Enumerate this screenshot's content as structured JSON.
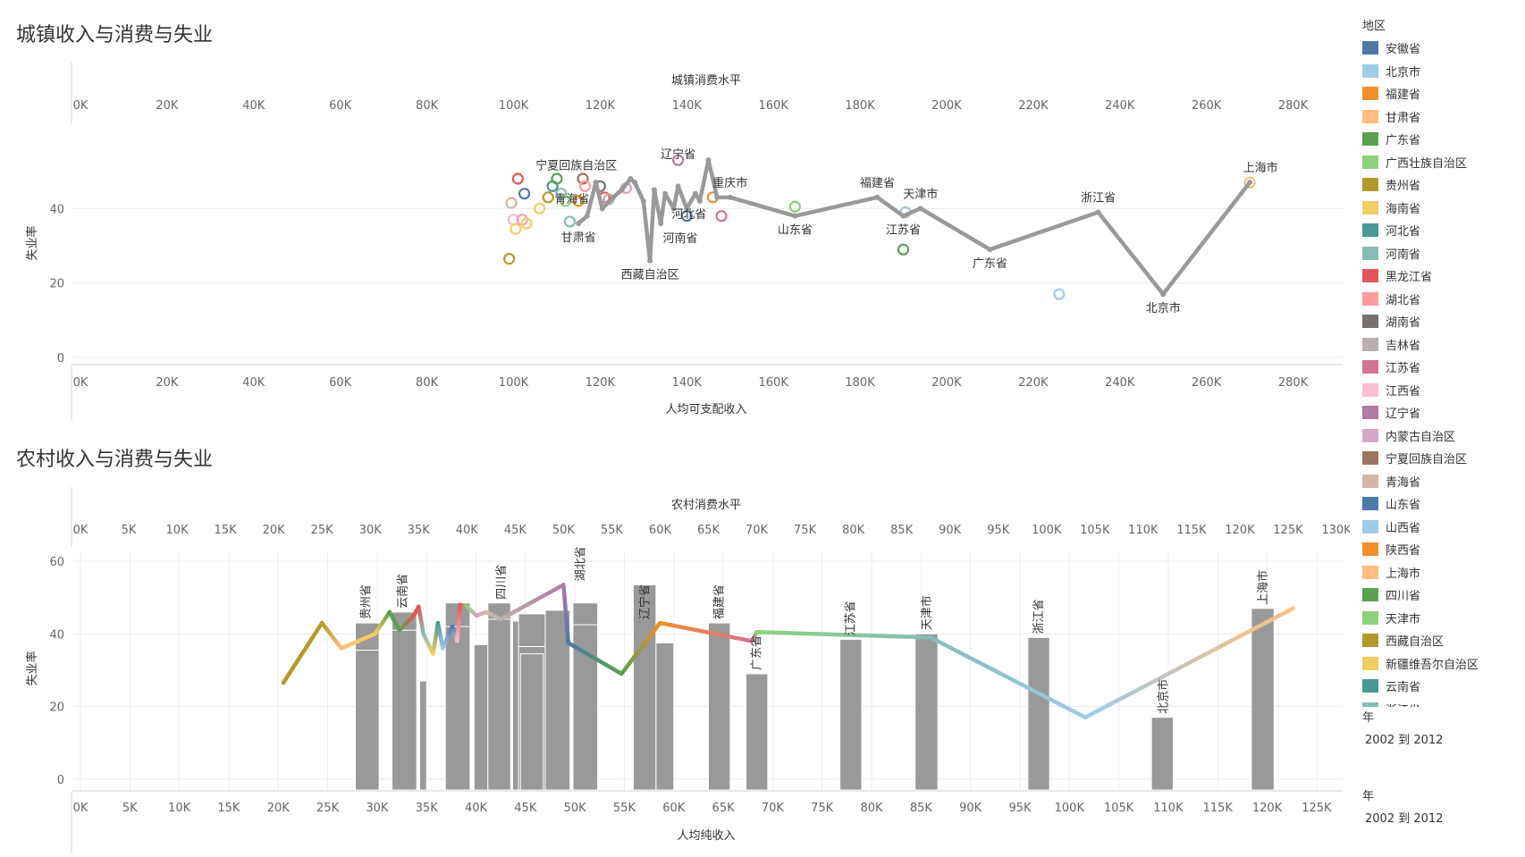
{
  "chart_data": [
    {
      "type": "scatter",
      "title": "城镇收入与消费与失业",
      "xlabel": "人均可支配收入",
      "x2label": "城镇消费水平",
      "ylabel": "失业率",
      "xlim": [
        0,
        290000
      ],
      "x2lim": [
        0,
        290000
      ],
      "ylim": [
        0,
        60
      ],
      "xticks": [
        0,
        20000,
        40000,
        60000,
        80000,
        100000,
        120000,
        140000,
        160000,
        180000,
        200000,
        220000,
        240000,
        260000,
        280000
      ],
      "xtick_labels": [
        "0K",
        "20K",
        "40K",
        "60K",
        "80K",
        "100K",
        "120K",
        "140K",
        "160K",
        "180K",
        "200K",
        "220K",
        "240K",
        "260K",
        "280K"
      ],
      "yticks": [
        0,
        20,
        40
      ],
      "ytick_labels": [
        "0",
        "20",
        "40"
      ],
      "line": {
        "color": "#999999",
        "points": [
          {
            "x": 115000,
            "y": 36,
            "label": "甘肃省"
          },
          {
            "x": 117000,
            "y": 38
          },
          {
            "x": 119000,
            "y": 47
          },
          {
            "x": 120500,
            "y": 40
          },
          {
            "x": 123000,
            "y": 43
          },
          {
            "x": 125000,
            "y": 45
          },
          {
            "x": 127000,
            "y": 48
          },
          {
            "x": 128000,
            "y": 47
          },
          {
            "x": 130000,
            "y": 42
          },
          {
            "x": 131500,
            "y": 26,
            "label": "西藏自治区"
          },
          {
            "x": 132500,
            "y": 45
          },
          {
            "x": 134000,
            "y": 36
          },
          {
            "x": 135000,
            "y": 44
          },
          {
            "x": 137000,
            "y": 40
          },
          {
            "x": 138000,
            "y": 46
          },
          {
            "x": 140000,
            "y": 40
          },
          {
            "x": 142000,
            "y": 44
          },
          {
            "x": 143000,
            "y": 42
          },
          {
            "x": 145000,
            "y": 53
          },
          {
            "x": 147000,
            "y": 43
          },
          {
            "x": 150000,
            "y": 43,
            "label": "重庆市"
          },
          {
            "x": 165000,
            "y": 38,
            "label": "山东省"
          },
          {
            "x": 184000,
            "y": 43,
            "label": "福建省"
          },
          {
            "x": 190000,
            "y": 38,
            "label": "江苏省"
          },
          {
            "x": 194000,
            "y": 40,
            "label": "天津市"
          },
          {
            "x": 210000,
            "y": 29,
            "label": "广东省"
          },
          {
            "x": 235000,
            "y": 39,
            "label": "浙江省"
          },
          {
            "x": 250000,
            "y": 17,
            "label": "北京市"
          },
          {
            "x": 270000,
            "y": 47,
            "label": "上海市"
          }
        ]
      },
      "points": [
        {
          "x": 99000,
          "y": 26.5,
          "color": "#B39B2A"
        },
        {
          "x": 99500,
          "y": 41.5,
          "color": "#D7B5A6"
        },
        {
          "x": 100000,
          "y": 37,
          "color": "#F4BBCF"
        },
        {
          "x": 100500,
          "y": 34.5,
          "color": "#F1CE63"
        },
        {
          "x": 101000,
          "y": 48,
          "color": "#E15759"
        },
        {
          "x": 102000,
          "y": 37,
          "color": "#F1A2BD"
        },
        {
          "x": 102500,
          "y": 44,
          "color": "#4E79A7"
        },
        {
          "x": 103000,
          "y": 36,
          "color": "#F1CE63"
        },
        {
          "x": 106000,
          "y": 40,
          "color": "#F1CE63"
        },
        {
          "x": 108000,
          "y": 43,
          "color": "#B39B2A"
        },
        {
          "x": 109000,
          "y": 46,
          "color": "#499894"
        },
        {
          "x": 110000,
          "y": 48,
          "color": "#59A14F"
        },
        {
          "x": 111000,
          "y": 44,
          "color": "#86BCB6"
        },
        {
          "x": 112000,
          "y": 42,
          "color": "#8CD17D"
        },
        {
          "x": 113000,
          "y": 36.5,
          "color": "#86BCB6"
        },
        {
          "x": 115000,
          "y": 42,
          "color": "#F28E2B"
        },
        {
          "x": 116000,
          "y": 48,
          "color": "#9C755F"
        },
        {
          "x": 116500,
          "y": 46,
          "color": "#FF9D9A"
        },
        {
          "x": 120000,
          "y": 46,
          "color": "#79706E"
        },
        {
          "x": 121000,
          "y": 43,
          "color": "#E15759"
        },
        {
          "x": 122000,
          "y": 42.5,
          "color": "#BAB0AC"
        },
        {
          "x": 126000,
          "y": 45.5,
          "color": "#D4A6C8"
        },
        {
          "x": 138000,
          "y": 53,
          "color": "#B07AA1"
        },
        {
          "x": 140000,
          "y": 38,
          "color": "#4E79A7"
        },
        {
          "x": 146000,
          "y": 43,
          "color": "#F28E2B"
        },
        {
          "x": 148000,
          "y": 38,
          "color": "#D37295"
        },
        {
          "x": 165000,
          "y": 40.5,
          "color": "#8CD17D"
        },
        {
          "x": 190000,
          "y": 29,
          "color": "#59A14F"
        },
        {
          "x": 190500,
          "y": 39,
          "color": "#9DC6DE"
        },
        {
          "x": 226000,
          "y": 17,
          "color": "#A0CBE8"
        },
        {
          "x": 270000,
          "y": 47,
          "color": "#FFBE7D"
        }
      ],
      "labels": [
        {
          "text": "宁夏回族自治区",
          "x": 114500,
          "y": 50.5
        },
        {
          "text": "辽宁省",
          "x": 138000,
          "y": 53.5
        },
        {
          "text": "青海省",
          "x": 113500,
          "y": 41.5
        },
        {
          "text": "河北省",
          "x": 140500,
          "y": 37.5
        },
        {
          "text": "河南省",
          "x": 138500,
          "y": 31
        }
      ]
    },
    {
      "type": "bar+line",
      "title": "农村收入与消费与失业",
      "xlabel": "人均纯收入",
      "x2label": "农村消费水平",
      "ylabel": "失业率",
      "xlim": [
        0,
        127000
      ],
      "x2lim": [
        0,
        130000
      ],
      "ylim": [
        -3,
        60
      ],
      "xticks": [
        0,
        5000,
        10000,
        15000,
        20000,
        25000,
        30000,
        35000,
        40000,
        45000,
        50000,
        55000,
        60000,
        65000,
        70000,
        75000,
        80000,
        85000,
        90000,
        95000,
        100000,
        105000,
        110000,
        115000,
        120000,
        125000
      ],
      "xtick_labels": [
        "0K",
        "5K",
        "10K",
        "15K",
        "20K",
        "25K",
        "30K",
        "35K",
        "40K",
        "45K",
        "50K",
        "55K",
        "60K",
        "65K",
        "70K",
        "75K",
        "80K",
        "85K",
        "90K",
        "95K",
        "100K",
        "105K",
        "110K",
        "115K",
        "120K",
        "125K"
      ],
      "x2ticks": [
        0,
        5000,
        10000,
        15000,
        20000,
        25000,
        30000,
        35000,
        40000,
        45000,
        50000,
        55000,
        60000,
        65000,
        70000,
        75000,
        80000,
        85000,
        90000,
        95000,
        100000,
        105000,
        110000,
        115000,
        120000,
        125000,
        130000
      ],
      "x2tick_labels": [
        "0K",
        "5K",
        "10K",
        "15K",
        "20K",
        "25K",
        "30K",
        "35K",
        "40K",
        "45K",
        "50K",
        "55K",
        "60K",
        "65K",
        "70K",
        "75K",
        "80K",
        "85K",
        "90K",
        "95K",
        "100K",
        "105K",
        "110K",
        "115K",
        "120K",
        "125K",
        "130K"
      ],
      "yticks": [
        0,
        20,
        40,
        60
      ],
      "ytick_labels": [
        "0",
        "20",
        "40",
        "60"
      ],
      "bars": [
        {
          "x0": 27800,
          "x1": 30200,
          "y": 43
        },
        {
          "x0": 27800,
          "x1": 30200,
          "y": 35.5
        },
        {
          "x0": 31500,
          "x1": 34000,
          "y": 46
        },
        {
          "x0": 31500,
          "x1": 34000,
          "y": 41
        },
        {
          "x0": 34300,
          "x1": 35000,
          "y": 27
        },
        {
          "x0": 36900,
          "x1": 39400,
          "y": 48.5
        },
        {
          "x0": 36900,
          "x1": 39400,
          "y": 42
        },
        {
          "x0": 39800,
          "x1": 41300,
          "y": 37
        },
        {
          "x0": 41200,
          "x1": 43500,
          "y": 48.5
        },
        {
          "x0": 41200,
          "x1": 43500,
          "y": 44
        },
        {
          "x0": 43700,
          "x1": 46200,
          "y": 43.5
        },
        {
          "x0": 44300,
          "x1": 47000,
          "y": 45.5
        },
        {
          "x0": 44300,
          "x1": 47000,
          "y": 36.5
        },
        {
          "x0": 44500,
          "x1": 46800,
          "y": 34.5
        },
        {
          "x0": 47000,
          "x1": 49500,
          "y": 46.5
        },
        {
          "x0": 49800,
          "x1": 52300,
          "y": 48.5
        },
        {
          "x0": 49800,
          "x1": 52300,
          "y": 42.5
        },
        {
          "x0": 55900,
          "x1": 58200,
          "y": 53.5
        },
        {
          "x0": 58200,
          "x1": 60000,
          "y": 37.5
        },
        {
          "x0": 63500,
          "x1": 65700,
          "y": 43
        },
        {
          "x0": 67300,
          "x1": 69500,
          "y": 29
        },
        {
          "x0": 76800,
          "x1": 79000,
          "y": 38.5
        },
        {
          "x0": 84400,
          "x1": 86700,
          "y": 40
        },
        {
          "x0": 95800,
          "x1": 98000,
          "y": 39
        },
        {
          "x0": 108300,
          "x1": 110500,
          "y": 17
        },
        {
          "x0": 118400,
          "x1": 120700,
          "y": 47
        }
      ],
      "bar_color": "#999999",
      "line": [
        {
          "x2": 21000,
          "y": 26.5,
          "color": "#B39B2A"
        },
        {
          "x2": 25000,
          "y": 43,
          "color": "#B39B2A"
        },
        {
          "x2": 27000,
          "y": 36,
          "color": "#FFBE7D"
        },
        {
          "x2": 30500,
          "y": 40,
          "color": "#F1CE63"
        },
        {
          "x2": 32000,
          "y": 46,
          "color": "#59A14F"
        },
        {
          "x2": 33000,
          "y": 41,
          "color": "#59A14F"
        },
        {
          "x2": 34500,
          "y": 45,
          "color": "#E15759"
        },
        {
          "x2": 35000,
          "y": 47.5,
          "color": "#E15759"
        },
        {
          "x2": 35500,
          "y": 40,
          "color": "#86BCB6"
        },
        {
          "x2": 36500,
          "y": 34.5,
          "color": "#F1CE63"
        },
        {
          "x2": 37000,
          "y": 43,
          "color": "#499894"
        },
        {
          "x2": 37500,
          "y": 36,
          "color": "#A0CBE8"
        },
        {
          "x2": 38500,
          "y": 42,
          "color": "#4E79A7"
        },
        {
          "x2": 39000,
          "y": 38,
          "color": "#F4BBCF"
        },
        {
          "x2": 39300,
          "y": 48,
          "color": "#E15759"
        },
        {
          "x2": 40000,
          "y": 47.5,
          "color": "#8CD17D"
        },
        {
          "x2": 41000,
          "y": 45,
          "color": "#D4A6C8"
        },
        {
          "x2": 42000,
          "y": 46,
          "color": "#D7B5A6"
        },
        {
          "x2": 43500,
          "y": 44,
          "color": "#BAB0AC"
        },
        {
          "x2": 50000,
          "y": 53.5,
          "color": "#B07AA1"
        },
        {
          "x2": 50500,
          "y": 37.5,
          "color": "#4E79A7"
        },
        {
          "x2": 56000,
          "y": 29,
          "color": "#59A14F"
        },
        {
          "x2": 60000,
          "y": 43,
          "color": "#F28E2B"
        },
        {
          "x2": 69500,
          "y": 38,
          "color": "#D37295"
        },
        {
          "x2": 70000,
          "y": 40.5,
          "color": "#8CD17D"
        },
        {
          "x2": 88000,
          "y": 39,
          "color": "#86BCB6"
        },
        {
          "x2": 104000,
          "y": 17,
          "color": "#A0CBE8"
        },
        {
          "x2": 125500,
          "y": 47,
          "color": "#FFBE7D"
        }
      ],
      "labels": [
        {
          "text": "贵州省",
          "x": 28800,
          "y": 43
        },
        {
          "text": "云南省",
          "x": 32500,
          "y": 46
        },
        {
          "text": "四川省",
          "x": 42500,
          "y": 48.5
        },
        {
          "text": "湖北省",
          "x": 50500,
          "y": 53.5
        },
        {
          "text": "辽宁省",
          "x": 57000,
          "y": 43
        },
        {
          "text": "福建省",
          "x": 64500,
          "y": 43
        },
        {
          "text": "广东省",
          "x": 68300,
          "y": 29
        },
        {
          "text": "江苏省",
          "x": 77800,
          "y": 38.5
        },
        {
          "text": "天津市",
          "x": 85500,
          "y": 40
        },
        {
          "text": "浙江省",
          "x": 96800,
          "y": 39
        },
        {
          "text": "北京市",
          "x": 109400,
          "y": 17
        },
        {
          "text": "上海市",
          "x": 119500,
          "y": 47
        }
      ]
    }
  ],
  "legend": {
    "title": "地区",
    "items": [
      {
        "label": "安徽省",
        "color": "#4E79A7"
      },
      {
        "label": "北京市",
        "color": "#A0CBE8"
      },
      {
        "label": "福建省",
        "color": "#F28E2B"
      },
      {
        "label": "甘肃省",
        "color": "#FFBE7D"
      },
      {
        "label": "广东省",
        "color": "#59A14F"
      },
      {
        "label": "广西壮族自治区",
        "color": "#8CD17D"
      },
      {
        "label": "贵州省",
        "color": "#B6992D"
      },
      {
        "label": "海南省",
        "color": "#F1CE63"
      },
      {
        "label": "河北省",
        "color": "#499894"
      },
      {
        "label": "河南省",
        "color": "#86BCB6"
      },
      {
        "label": "黑龙江省",
        "color": "#E15759"
      },
      {
        "label": "湖北省",
        "color": "#FF9D9A"
      },
      {
        "label": "湖南省",
        "color": "#79706E"
      },
      {
        "label": "吉林省",
        "color": "#BAB0AC"
      },
      {
        "label": "江苏省",
        "color": "#D37295"
      },
      {
        "label": "江西省",
        "color": "#FABFD2"
      },
      {
        "label": "辽宁省",
        "color": "#B07AA1"
      },
      {
        "label": "内蒙古自治区",
        "color": "#D4A6C8"
      },
      {
        "label": "宁夏回族自治区",
        "color": "#9D7660"
      },
      {
        "label": "青海省",
        "color": "#D7B5A6"
      },
      {
        "label": "山东省",
        "color": "#4E79A7"
      },
      {
        "label": "山西省",
        "color": "#A0CBE8"
      },
      {
        "label": "陕西省",
        "color": "#F28E2B"
      },
      {
        "label": "上海市",
        "color": "#FFBE7D"
      },
      {
        "label": "四川省",
        "color": "#59A14F"
      },
      {
        "label": "天津市",
        "color": "#8CD17D"
      },
      {
        "label": "西藏自治区",
        "color": "#B6992D"
      },
      {
        "label": "新疆维吾尔自治区",
        "color": "#F1CE63"
      },
      {
        "label": "云南省",
        "color": "#499894"
      },
      {
        "label": "浙江省",
        "color": "#86BCB6"
      }
    ]
  },
  "filters": [
    {
      "title": "年",
      "value": "2002 到 2012"
    },
    {
      "title": "年",
      "value": "2002 到 2012"
    }
  ]
}
